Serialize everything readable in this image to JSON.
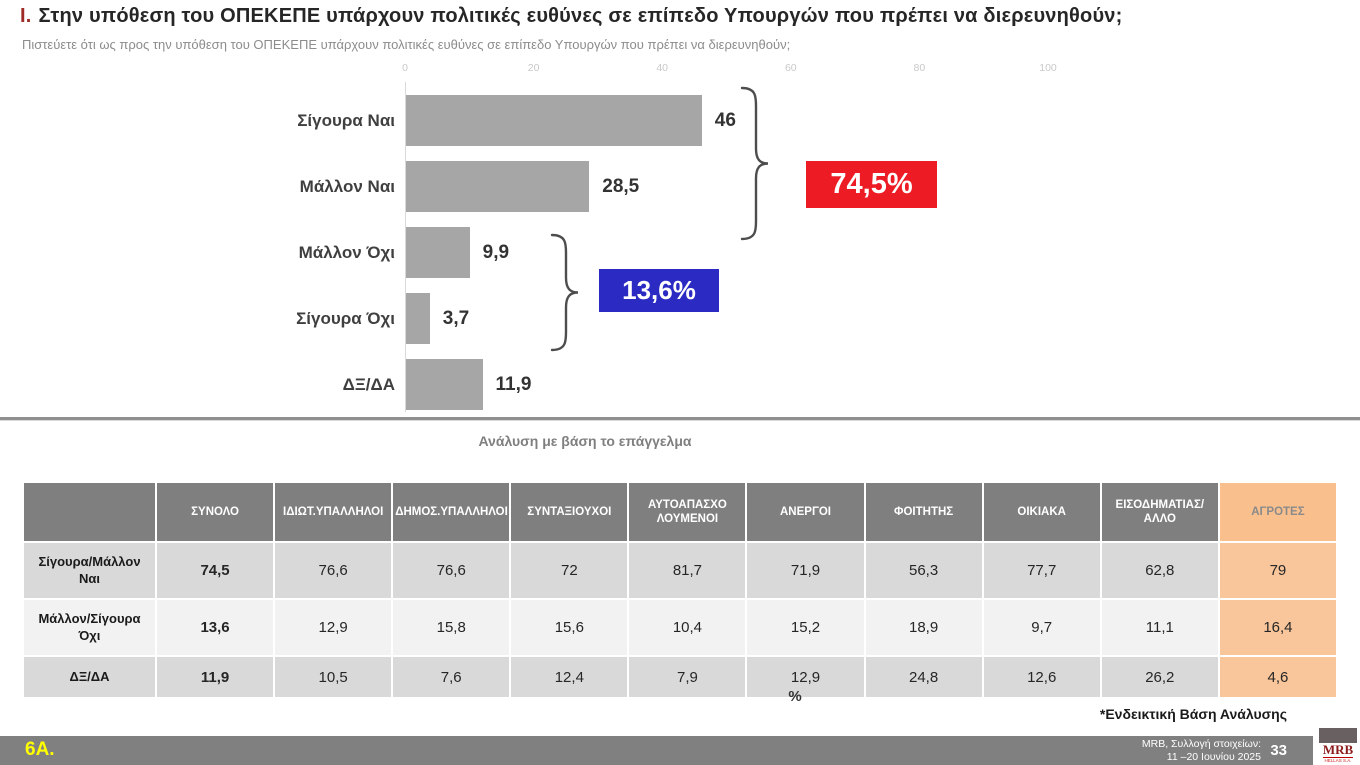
{
  "page": {
    "title_index": "Ι.",
    "title": "Στην υπόθεση του ΟΠΕΚΕΠΕ υπάρχουν πολιτικές ευθύνες σε επίπεδο Υπουργών που πρέπει να διερευνηθούν;",
    "subtitle": "Πιστεύετε ότι ως προς την υπόθεση του ΟΠΕΚΕΠΕ υπάρχουν πολιτικές ευθύνες σε επίπεδο Υπουργών που πρέπει να διερευνηθούν;"
  },
  "chart_data": {
    "type": "bar",
    "orientation": "horizontal",
    "categories": [
      "Σίγουρα Ναι",
      "Μάλλον Ναι",
      "Μάλλον Όχι",
      "Σίγουρα Όχι",
      "ΔΞ/ΔΑ"
    ],
    "values": [
      46,
      28.5,
      9.9,
      3.7,
      11.9
    ],
    "value_labels": [
      "46",
      "28,5",
      "9,9",
      "3,7",
      "11,9"
    ],
    "axis_ticks": [
      0,
      20,
      40,
      60,
      80,
      100
    ],
    "xlim": [
      0,
      100
    ],
    "bar_color": "#a6a6a6",
    "grid": false,
    "groups": [
      {
        "label": "74,5%",
        "color": "#ed1c24",
        "covers": [
          "Σίγουρα Ναι",
          "Μάλλον Ναι"
        ]
      },
      {
        "label": "13,6%",
        "color": "#2b2bc4",
        "covers": [
          "Μάλλον Όχι",
          "Σίγουρα Όχι"
        ]
      }
    ]
  },
  "analysis": {
    "caption": "Ανάλυση με βάση το επάγγελμα",
    "table": {
      "columns": [
        "",
        "ΣΥΝΟΛΟ",
        "ΙΔΙΩΤ.ΥΠΑΛΛΗΛΟΙ",
        "ΔΗΜΟΣ.ΥΠΑΛΛΗΛΟΙ",
        "ΣΥΝΤΑΞΙΟΥΧΟΙ",
        "ΑΥΤΟΑΠΑΣΧΟ ΛΟΥΜΕΝΟΙ",
        "ΑΝΕΡΓΟΙ",
        "ΦΟΙΤΗΤΗΣ",
        "ΟΙΚΙΑΚΑ",
        "ΕΙΣΟΔΗΜΑΤΙΑΣ/ ΑΛΛΟ",
        "ΑΓΡΟΤΕΣ"
      ],
      "rows": [
        {
          "label": "Σίγουρα/Μάλλον Ναι",
          "values": [
            "74,5",
            "76,6",
            "76,6",
            "72",
            "81,7",
            "71,9",
            "56,3",
            "77,7",
            "62,8",
            "79"
          ]
        },
        {
          "label": "Μάλλον/Σίγουρα Όχι",
          "values": [
            "13,6",
            "12,9",
            "15,8",
            "15,6",
            "10,4",
            "15,2",
            "18,9",
            "9,7",
            "11,1",
            "16,4"
          ]
        },
        {
          "label": "ΔΞ/ΔΑ",
          "values": [
            "11,9",
            "10,5",
            "7,6",
            "12,4",
            "7,9",
            "12,9",
            "24,8",
            "12,6",
            "26,2",
            "4,6"
          ]
        }
      ],
      "unit": "%"
    },
    "footnote": "*Ενδεικτική Βάση Ανάλυσης"
  },
  "footer": {
    "slide_code": "6Α.",
    "source_line1": "MRB, Συλλογή στοιχείων:",
    "source_line2": "11 –20 Ιουνίου 2025",
    "page_number": "33",
    "logo_text": "MRB",
    "logo_subtext": "HELLAS S.A."
  },
  "colors": {
    "accent_red": "#ed1c24",
    "accent_blue": "#2b2bc4",
    "bar_gray": "#a6a6a6",
    "table_header_gray": "#7f7f7f",
    "farmers_column_peach": "#f9c08e",
    "footer_gray": "#808080",
    "slide_code_yellow": "#ffff00"
  }
}
